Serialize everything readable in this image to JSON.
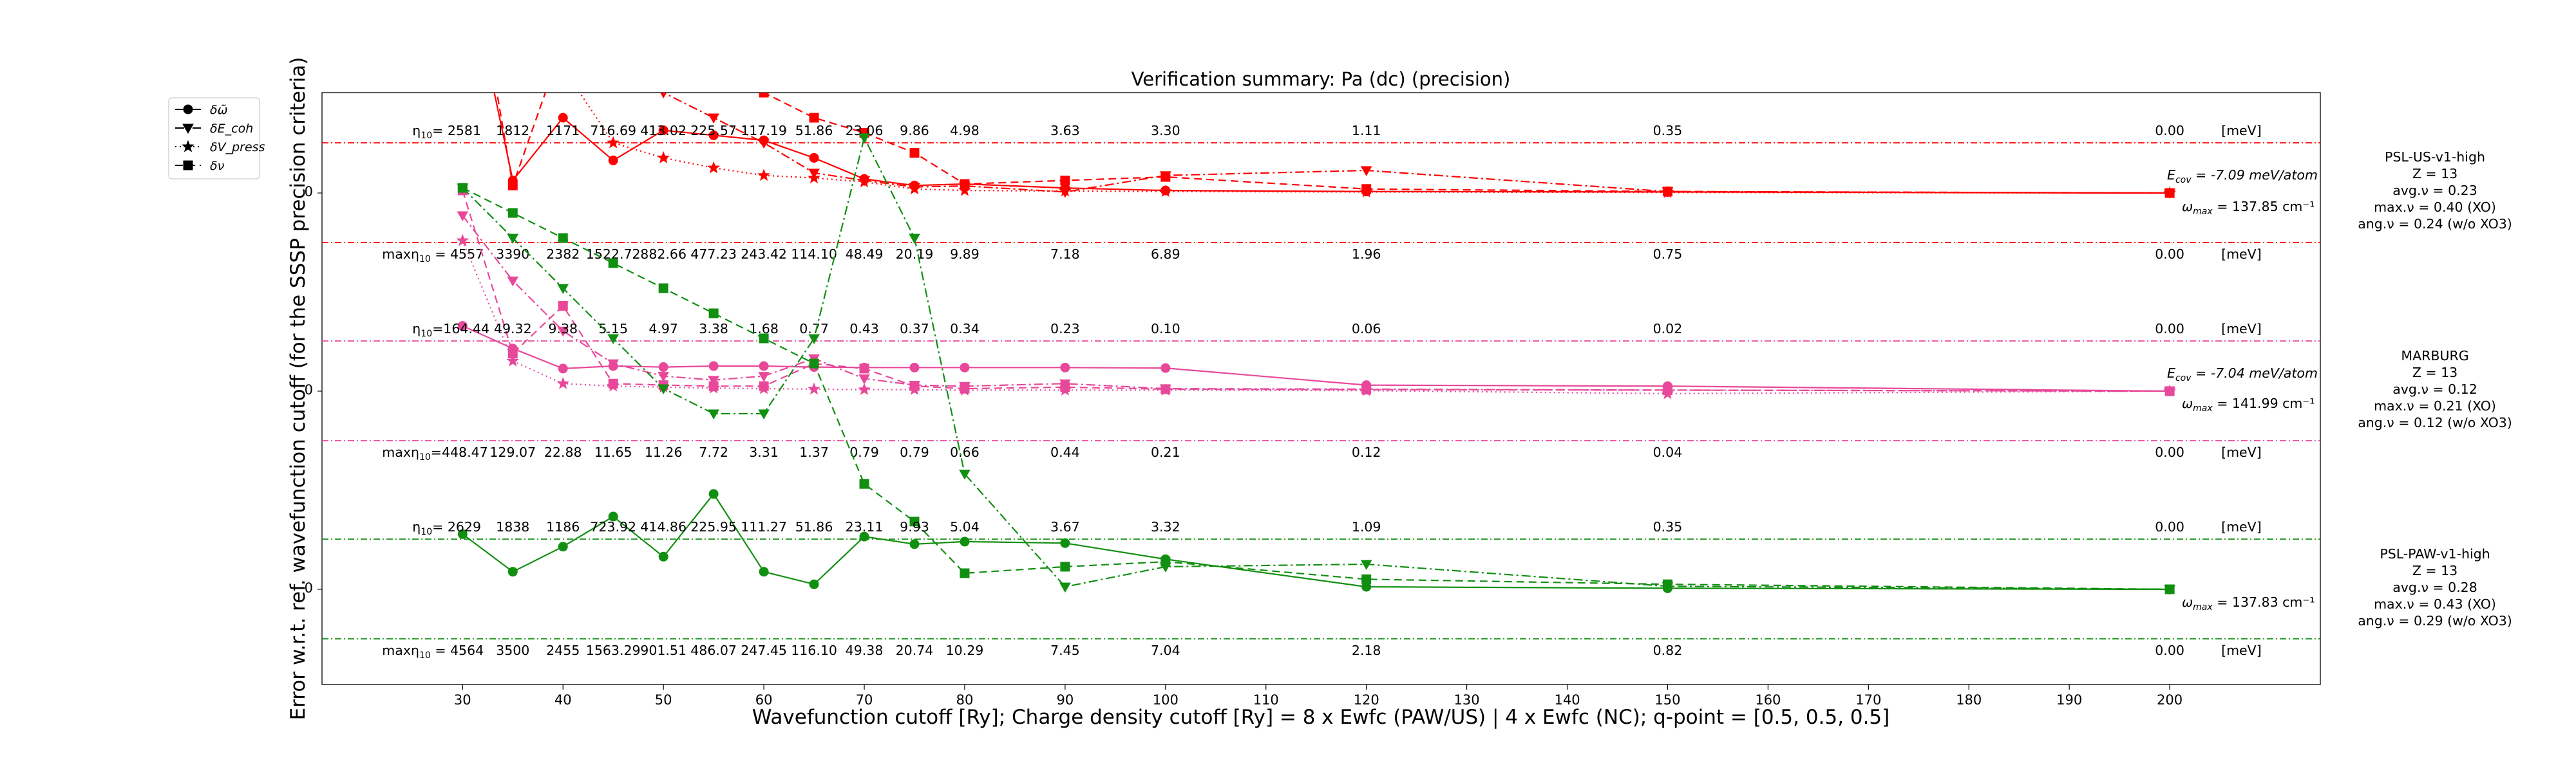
{
  "chart_data": {
    "type": "line",
    "title": "Verification summary: Pa (dc) (precision)",
    "xlabel": "Wavefunction cutoff [Ry]; Charge density cutoff [Ry] = 8 x Ewfc (PAW/US) | 4 x Ewfc (NC); q-point = [0.5, 0.5, 0.5]",
    "ylabel": "Error w.r.t. ref. wavefunction cutoff (for the SSSP precision criteria)",
    "x_ticks": [
      30,
      40,
      50,
      60,
      70,
      80,
      90,
      100,
      110,
      120,
      130,
      140,
      150,
      160,
      170,
      180,
      190,
      200
    ],
    "xlim": [
      16,
      215
    ],
    "grid": false,
    "legend_position": "top-left outside",
    "legend": [
      {
        "label": "δω̃",
        "marker": "circle",
        "linestyle": "solid"
      },
      {
        "label": "δE_coh",
        "marker": "triangle-down",
        "linestyle": "dashdot"
      },
      {
        "label": "δV_press",
        "marker": "star",
        "linestyle": "dotted"
      },
      {
        "label": "δν",
        "marker": "square",
        "linestyle": "dashed"
      }
    ],
    "panels": [
      {
        "label": "PSL-US-v1-high",
        "color": "#ff0000",
        "info": [
          "PSL-US-v1-high",
          "Z = 13",
          "avg.ν = 0.23",
          "max.ν = 0.40 (XO)",
          "ang.ν = 0.24 (w/o XO3)"
        ],
        "ecov_prefix": "E",
        "ecov_sub": "cov",
        "ecov_text": " = -7.09 meV/atom",
        "omega_prefix": "ω",
        "omega_sub": "max",
        "omega_text": " = 137.85 cm⁻¹",
        "ytick": "0",
        "eta_prefix": "η",
        "eta_sub": "10",
        "eta_first": "= 2581",
        "eta_values": [
          "1812",
          "1171",
          "716.69",
          "413.02",
          "225.57",
          "117.19",
          "51.86",
          "23.06",
          "9.86",
          "4.98",
          "3.63",
          "3.30",
          "1.11",
          "0.35",
          "0.00"
        ],
        "max_prefix": "max",
        "max_eta_first": " = 4557",
        "max_values": [
          "3390",
          "2382",
          "1522.72",
          "882.66",
          "477.23",
          "243.42",
          "114.10",
          "48.49",
          "20.19",
          "9.89",
          "7.18",
          "6.89",
          "1.96",
          "0.75",
          "0.00"
        ],
        "unit": "[meV]",
        "series": {
          "omega": {
            "x": [
              30,
              35,
              40,
              45,
              50,
              55,
              60,
              65,
              70,
              75,
              80,
              90,
              100,
              120,
              150,
              200
            ],
            "y": [
              5.0,
              0.25,
              1.5,
              0.65,
              1.25,
              1.15,
              1.05,
              0.7,
              0.28,
              0.15,
              0.18,
              0.1,
              0.05,
              0.03,
              0.02,
              0.0
            ]
          },
          "ecoh": {
            "x": [
              30,
              35,
              40,
              45,
              50,
              55,
              60,
              65,
              70,
              75,
              80,
              90,
              100,
              120,
              150,
              200
            ],
            "y": [
              8.0,
              6.0,
              4.0,
              2.5,
              2.0,
              1.5,
              1.0,
              0.4,
              0.25,
              0.12,
              0.14,
              0.02,
              0.35,
              0.45,
              0.03,
              0.0
            ]
          },
          "vpress": {
            "x": [
              30,
              35,
              40,
              45,
              50,
              55,
              60,
              65,
              70,
              75,
              80,
              90,
              100,
              120,
              150,
              200
            ],
            "y": [
              6.0,
              3.0,
              2.5,
              1.0,
              0.7,
              0.5,
              0.35,
              0.3,
              0.22,
              0.08,
              0.05,
              0.04,
              0.03,
              0.02,
              0.01,
              0.0
            ]
          },
          "nu": {
            "x": [
              30,
              35,
              40,
              45,
              50,
              55,
              60,
              65,
              70,
              75,
              80,
              90,
              100,
              120,
              150,
              200
            ],
            "y": [
              6.0,
              0.15,
              3.0,
              3.5,
              3.0,
              2.5,
              2.0,
              1.5,
              1.2,
              0.8,
              0.18,
              0.25,
              0.32,
              0.08,
              0.03,
              0.0
            ]
          }
        }
      },
      {
        "label": "MARBURG",
        "color": "#e8489a",
        "info": [
          "MARBURG",
          "Z = 13",
          "avg.ν = 0.12",
          "max.ν = 0.21 (XO)",
          "ang.ν = 0.12 (w/o XO3)"
        ],
        "ecov_prefix": "E",
        "ecov_sub": "cov",
        "ecov_text": " = -7.04 meV/atom",
        "omega_prefix": "ω",
        "omega_sub": "max",
        "omega_text": " = 141.99 cm⁻¹",
        "ytick": "0",
        "eta_prefix": "η",
        "eta_sub": "10",
        "eta_first": "=164.44",
        "eta_values": [
          "49.32",
          "9.38",
          "5.15",
          "4.97",
          "3.38",
          "1.68",
          "0.77",
          "0.43",
          "0.37",
          "0.34",
          "0.23",
          "0.10",
          "0.06",
          "0.02",
          "0.00"
        ],
        "max_prefix": "max",
        "max_eta_first": "=448.47",
        "max_values": [
          "129.07",
          "22.88",
          "11.65",
          "11.26",
          "7.72",
          "3.31",
          "1.37",
          "0.79",
          "0.79",
          "0.66",
          "0.44",
          "0.21",
          "0.12",
          "0.04",
          "0.00"
        ],
        "unit": "[meV]",
        "series": {
          "omega": {
            "x": [
              30,
              35,
              40,
              45,
              50,
              55,
              60,
              65,
              70,
              75,
              80,
              90,
              100,
              120,
              150,
              200
            ],
            "y": [
              1.3,
              0.85,
              0.45,
              0.5,
              0.48,
              0.5,
              0.5,
              0.48,
              0.47,
              0.47,
              0.47,
              0.47,
              0.46,
              0.12,
              0.1,
              0.0
            ]
          },
          "ecoh": {
            "x": [
              30,
              35,
              40,
              45,
              50,
              55,
              60,
              65,
              70,
              75,
              80,
              90,
              100,
              120,
              150,
              200
            ],
            "y": [
              3.5,
              2.2,
              1.2,
              0.55,
              0.3,
              0.22,
              0.3,
              0.65,
              0.25,
              0.12,
              0.1,
              0.15,
              0.05,
              0.04,
              0.02,
              0.0
            ]
          },
          "vpress": {
            "x": [
              30,
              35,
              40,
              45,
              50,
              55,
              60,
              65,
              70,
              75,
              80,
              90,
              100,
              120,
              150,
              200
            ],
            "y": [
              3.0,
              0.6,
              0.15,
              0.1,
              0.08,
              0.06,
              0.05,
              0.04,
              0.03,
              0.03,
              0.02,
              0.02,
              0.02,
              0.01,
              -0.05,
              0.0
            ]
          },
          "nu": {
            "x": [
              30,
              35,
              40,
              45,
              50,
              55,
              60,
              65,
              70,
              75,
              80,
              90,
              100,
              120,
              150,
              200
            ],
            "y": [
              4.0,
              0.75,
              1.7,
              0.15,
              0.12,
              0.1,
              0.1,
              0.55,
              0.45,
              0.1,
              0.05,
              0.08,
              0.04,
              0.03,
              0.02,
              0.0
            ]
          }
        }
      },
      {
        "label": "PSL-PAW-v1-high",
        "color": "#118f11",
        "info": [
          "PSL-PAW-v1-high",
          "Z = 13",
          "avg.ν = 0.28",
          "max.ν = 0.43 (XO)",
          "ang.ν = 0.29 (w/o XO3)"
        ],
        "ecov_prefix": "",
        "ecov_sub": "",
        "ecov_text": "",
        "omega_prefix": "ω",
        "omega_sub": "max",
        "omega_text": " = 137.83 cm⁻¹",
        "ytick": "0",
        "eta_prefix": "η",
        "eta_sub": "10",
        "eta_first": "= 2629",
        "eta_values": [
          "1838",
          "1186",
          "723.92",
          "414.86",
          "225.95",
          "111.27",
          "51.86",
          "23.11",
          "9.93",
          "5.04",
          "3.67",
          "3.32",
          "1.09",
          "0.35",
          "0.00"
        ],
        "max_prefix": "max",
        "max_eta_first": " = 4564",
        "max_values": [
          "3500",
          "2455",
          "1563.29",
          "901.51",
          "486.07",
          "247.45",
          "116.10",
          "49.38",
          "20.74",
          "10.29",
          "7.45",
          "7.04",
          "2.18",
          "0.82",
          "0.00"
        ],
        "unit": "[meV]",
        "series": {
          "omega": {
            "x": [
              30,
              35,
              40,
              45,
              50,
              55,
              60,
              65,
              70,
              75,
              80,
              90,
              100,
              120,
              150,
              200
            ],
            "y": [
              1.1,
              0.35,
              0.85,
              1.45,
              0.65,
              1.9,
              0.35,
              0.1,
              1.05,
              0.9,
              0.95,
              0.92,
              0.6,
              0.05,
              0.02,
              0.0
            ]
          },
          "ecoh": {
            "x": [
              30,
              35,
              40,
              45,
              50,
              55,
              60,
              65,
              70,
              75,
              80,
              90,
              100,
              120,
              150,
              200
            ],
            "y": [
              8.0,
              7.0,
              6.0,
              5.0,
              4.0,
              3.5,
              3.5,
              5.0,
              9.0,
              7.0,
              2.3,
              0.05,
              0.45,
              0.5,
              0.06,
              0.0
            ]
          },
          "vpress": {
            "x": [],
            "y": []
          },
          "nu": {
            "x": [
              30,
              35,
              40,
              45,
              50,
              55,
              60,
              65,
              70,
              75,
              80,
              90,
              100,
              120,
              150,
              200
            ],
            "y": [
              8.0,
              7.5,
              7.0,
              6.5,
              6.0,
              5.5,
              5.0,
              4.5,
              2.1,
              1.35,
              0.32,
              0.45,
              0.55,
              0.2,
              0.1,
              0.0
            ]
          }
        }
      }
    ]
  }
}
